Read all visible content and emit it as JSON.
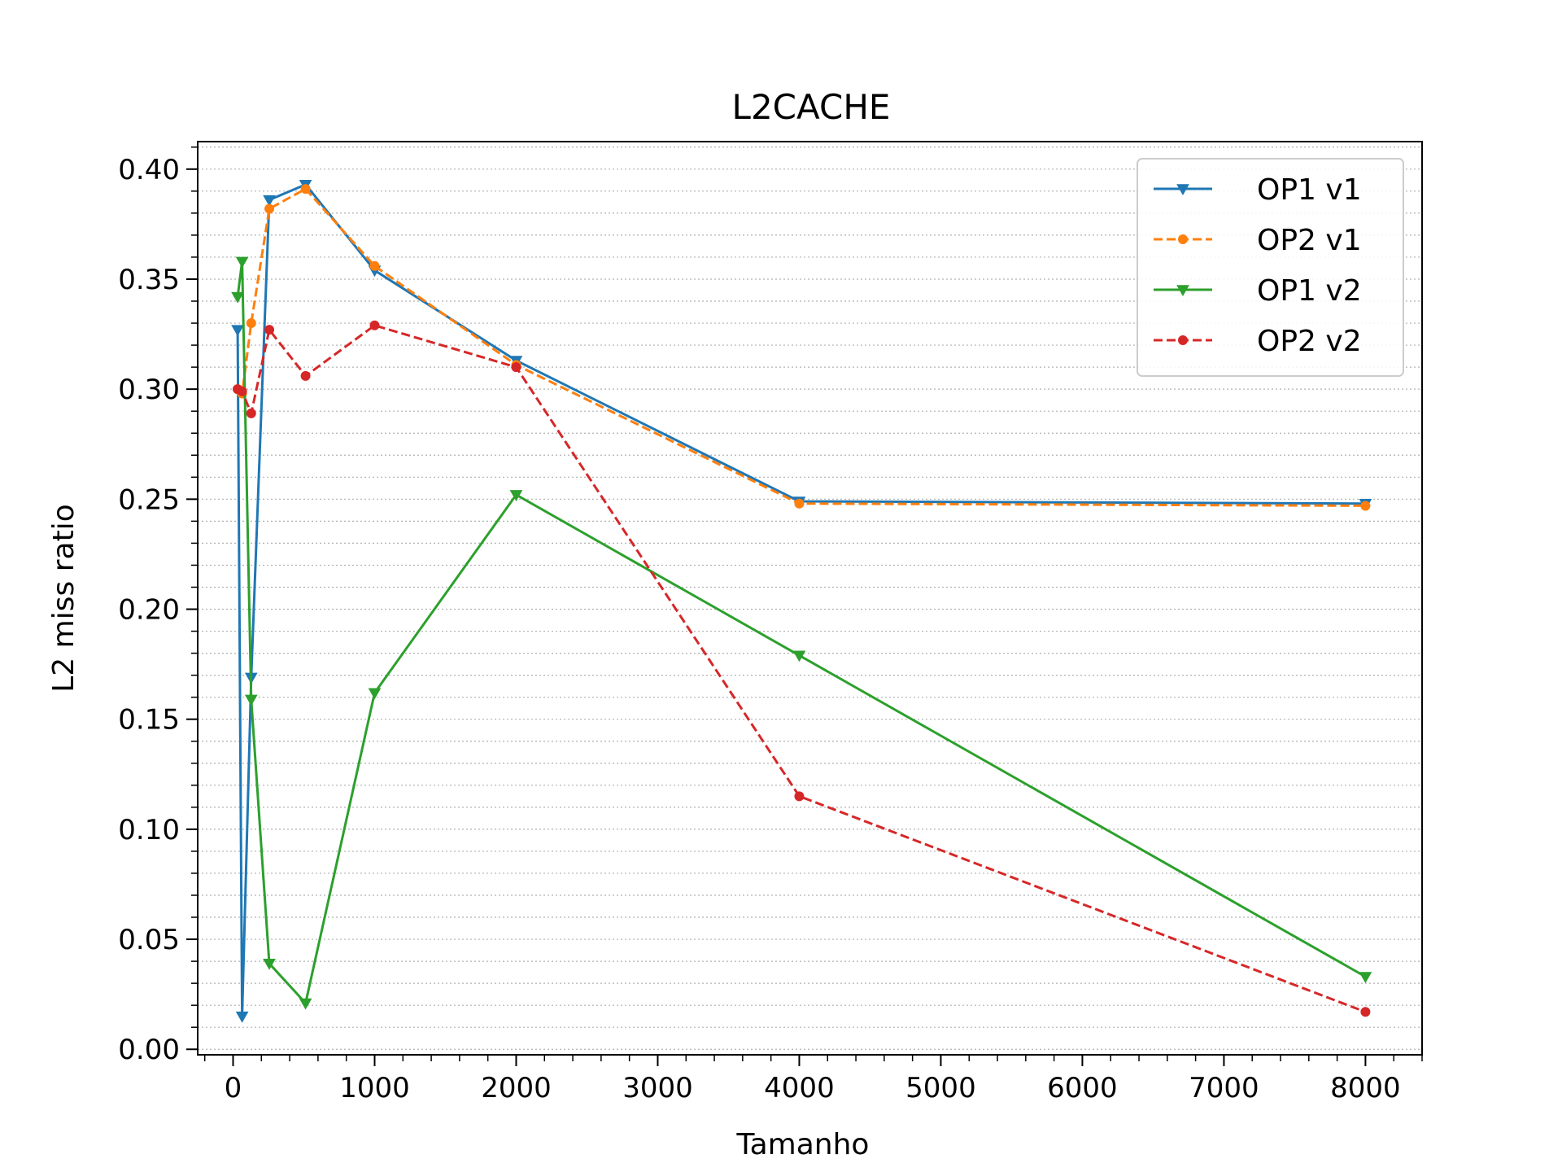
{
  "chart_data": {
    "type": "line",
    "title": "L2CACHE",
    "xlabel": "Tamanho",
    "ylabel": "L2 miss ratio",
    "xlim": [
      -250,
      8400
    ],
    "ylim": [
      -0.0025,
      0.4125
    ],
    "xticks": [
      0,
      1000,
      2000,
      3000,
      4000,
      5000,
      6000,
      7000,
      8000
    ],
    "xtick_labels": [
      "0",
      "1000",
      "2000",
      "3000",
      "4000",
      "5000",
      "6000",
      "7000",
      "8000"
    ],
    "yticks": [
      0.0,
      0.05,
      0.1,
      0.15,
      0.2,
      0.25,
      0.3,
      0.35,
      0.4
    ],
    "ytick_labels": [
      "0.00",
      "0.05",
      "0.10",
      "0.15",
      "0.20",
      "0.25",
      "0.30",
      "0.35",
      "0.40"
    ],
    "grid": "horizontal minor, dotted",
    "legend_position": "top-right",
    "x": [
      32,
      64,
      128,
      256,
      512,
      1000,
      2000,
      4000,
      8000
    ],
    "series": [
      {
        "name": "OP1 v1",
        "color": "#1f77b4",
        "linestyle": "solid",
        "marker": "triangle-down",
        "values": [
          0.327,
          0.015,
          0.169,
          0.386,
          0.393,
          0.354,
          0.313,
          0.249,
          0.248
        ]
      },
      {
        "name": "OP2 v1",
        "color": "#ff7f0e",
        "linestyle": "dashed",
        "marker": "circle",
        "values": [
          0.3,
          0.298,
          0.33,
          0.382,
          0.391,
          0.356,
          0.311,
          0.248,
          0.247
        ]
      },
      {
        "name": "OP1 v2",
        "color": "#2ca02c",
        "linestyle": "solid",
        "marker": "triangle-down",
        "values": [
          0.342,
          0.358,
          0.159,
          0.039,
          0.021,
          0.162,
          0.252,
          0.179,
          0.033
        ]
      },
      {
        "name": "OP2 v2",
        "color": "#d62728",
        "linestyle": "dashed",
        "marker": "circle",
        "values": [
          0.3,
          0.299,
          0.289,
          0.327,
          0.306,
          0.329,
          0.31,
          0.115,
          0.017
        ]
      }
    ]
  }
}
